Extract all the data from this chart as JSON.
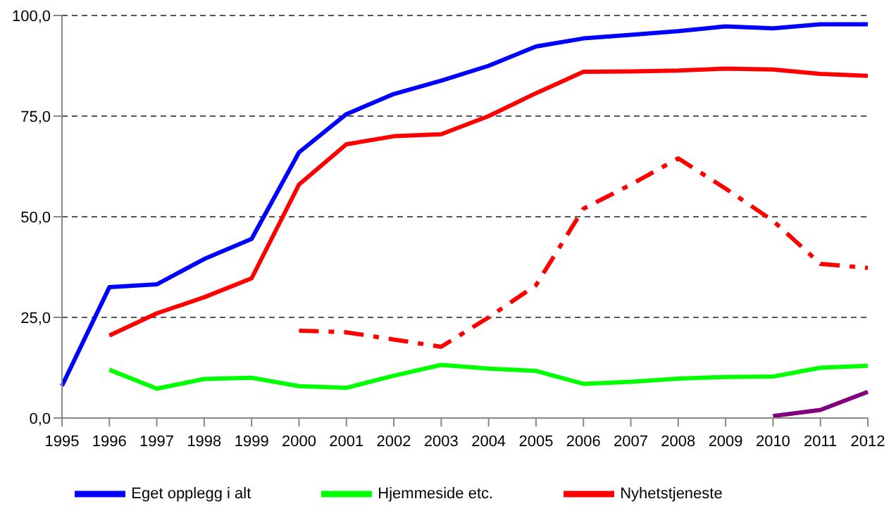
{
  "chart_data": {
    "type": "line",
    "categories": [
      "1995",
      "1996",
      "1997",
      "1998",
      "1999",
      "2000",
      "2001",
      "2002",
      "2003",
      "2004",
      "2005",
      "2006",
      "2007",
      "2008",
      "2009",
      "2010",
      "2011",
      "2012"
    ],
    "series": [
      {
        "name": "Eget opplegg i alt",
        "color": "#0000ff",
        "values": [
          8,
          32.5,
          33.2,
          39.5,
          44.5,
          66,
          75.5,
          80.5,
          83.8,
          87.5,
          92.3,
          94.3,
          95.2,
          96.1,
          97.3,
          96.8,
          97.8,
          97.8
        ]
      },
      {
        "name": "Nyhetstjeneste",
        "color": "#ff0000",
        "values": [
          null,
          20.5,
          26,
          30,
          34.7,
          58,
          68,
          70,
          70.5,
          75,
          80.7,
          86,
          86.1,
          86.3,
          86.8,
          86.6,
          85.5,
          85
        ]
      },
      {
        "name": "Hjemmeside etc.",
        "color": "#00ff00",
        "values": [
          null,
          12,
          7.3,
          9.7,
          10,
          7.9,
          7.5,
          10.5,
          13.2,
          12.3,
          11.7,
          8.5,
          9,
          9.8,
          10.2,
          10.3,
          12.5,
          13
        ]
      },
      {
        "color": "#ff0000",
        "line_style": "dashed",
        "values": [
          null,
          null,
          null,
          null,
          null,
          21.7,
          21.3,
          19.5,
          17.7,
          25,
          33,
          52,
          58,
          64.5,
          57,
          49,
          38.3,
          37.3
        ]
      },
      {
        "color": "#800080",
        "values": [
          null,
          null,
          null,
          null,
          null,
          null,
          null,
          null,
          null,
          null,
          null,
          null,
          null,
          null,
          null,
          0.5,
          2,
          6.5
        ]
      }
    ],
    "ylim": [
      0,
      100
    ],
    "yticks": [
      {
        "value": 0,
        "label": "0,0"
      },
      {
        "value": 25,
        "label": "25,0"
      },
      {
        "value": 50,
        "label": "50,0"
      },
      {
        "value": 75,
        "label": "75,0"
      },
      {
        "value": 100,
        "label": "100,0"
      }
    ],
    "grid": "y",
    "legend": "bottom",
    "marker": "none",
    "line_style": "solid"
  }
}
